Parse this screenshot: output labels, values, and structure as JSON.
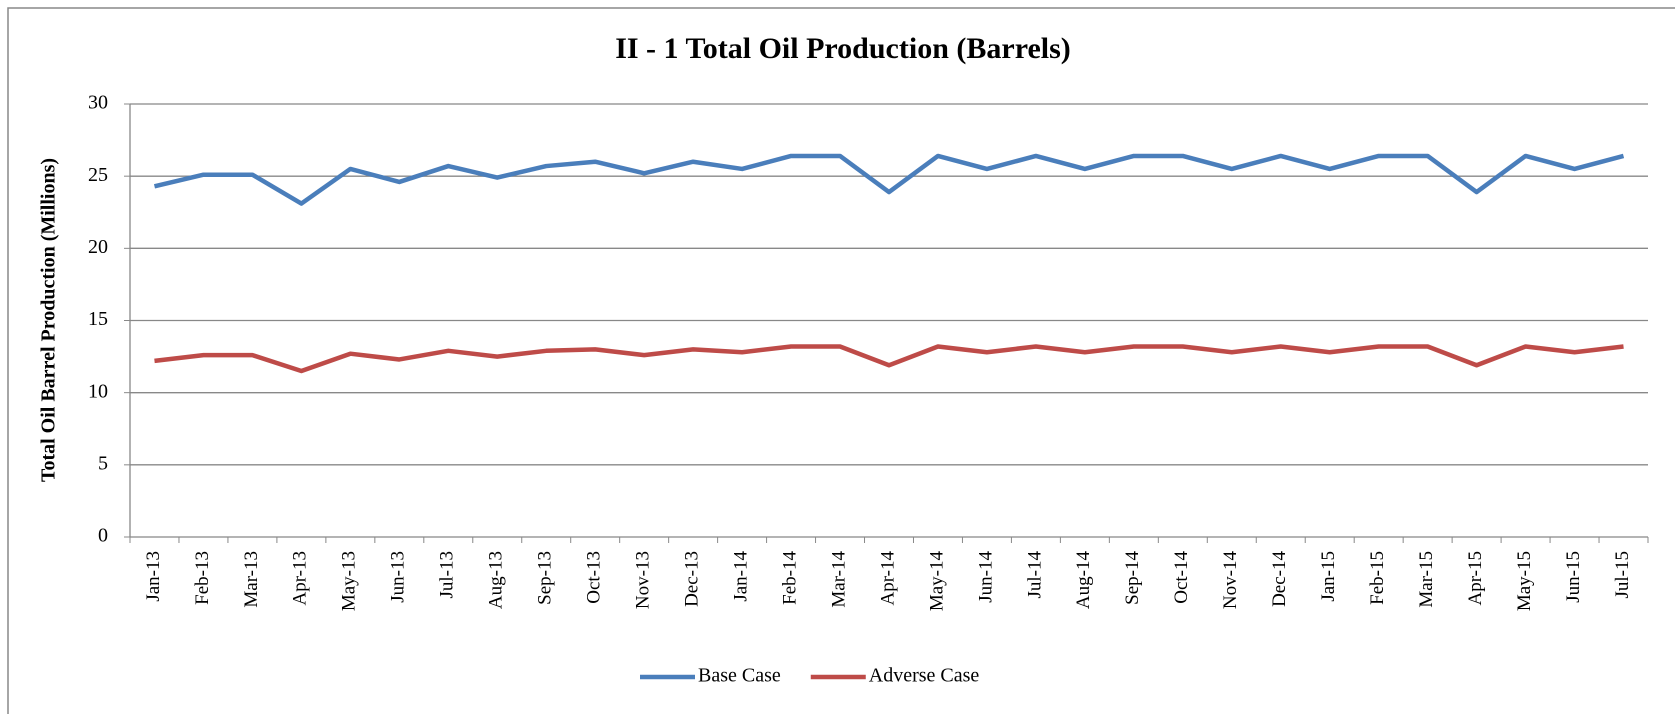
{
  "chart_data": {
    "type": "line",
    "title": "II - 1 Total Oil Production (Barrels)",
    "y_label": "Total Oil Barrel Production (Millions)",
    "categories": [
      "Jan-13",
      "Feb-13",
      "Mar-13",
      "Apr-13",
      "May-13",
      "Jun-13",
      "Jul-13",
      "Aug-13",
      "Sep-13",
      "Oct-13",
      "Nov-13",
      "Dec-13",
      "Jan-14",
      "Feb-14",
      "Mar-14",
      "Apr-14",
      "May-14",
      "Jun-14",
      "Jul-14",
      "Aug-14",
      "Sep-14",
      "Oct-14",
      "Nov-14",
      "Dec-14",
      "Jan-15",
      "Feb-15",
      "Mar-15",
      "Apr-15",
      "May-15",
      "Jun-15",
      "Jul-15"
    ],
    "series": [
      {
        "name": "Base Case",
        "color": "#4a7ebb",
        "values": [
          24.3,
          25.1,
          25.1,
          23.1,
          25.5,
          24.6,
          25.7,
          24.9,
          25.7,
          26.0,
          25.2,
          26.0,
          25.5,
          26.4,
          26.4,
          23.9,
          26.4,
          25.5,
          26.4,
          25.5,
          26.4,
          26.4,
          25.5,
          26.4,
          25.5,
          26.4,
          26.4,
          23.9,
          26.4,
          25.5,
          26.4
        ]
      },
      {
        "name": "Adverse Case",
        "color": "#be4b48",
        "values": [
          12.2,
          12.6,
          12.6,
          11.5,
          12.7,
          12.3,
          12.9,
          12.5,
          12.9,
          13.0,
          12.6,
          13.0,
          12.8,
          13.2,
          13.2,
          11.9,
          13.2,
          12.8,
          13.2,
          12.8,
          13.2,
          13.2,
          12.8,
          13.2,
          12.8,
          13.2,
          13.2,
          11.9,
          13.2,
          12.8,
          13.2
        ]
      }
    ],
    "ylim": [
      0,
      30
    ],
    "yticks": [
      0,
      5,
      10,
      15,
      20,
      25,
      30
    ],
    "grid": true,
    "legend": "bottom"
  }
}
